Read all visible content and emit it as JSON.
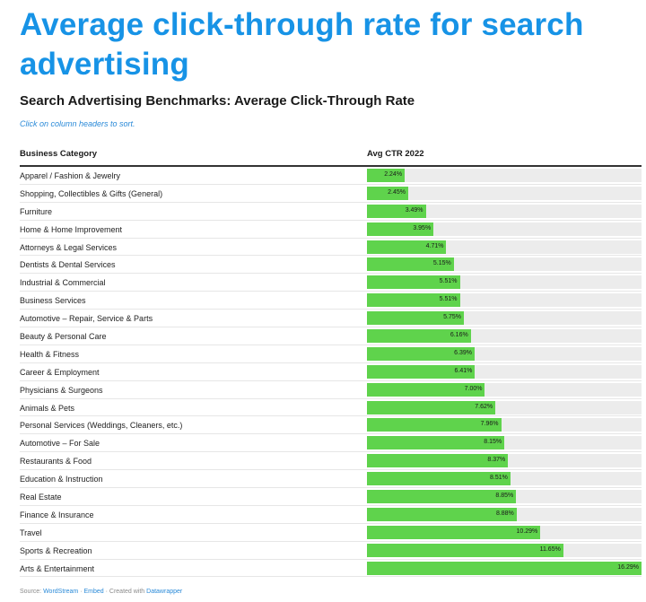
{
  "headline": "Average click-through rate for search advertising",
  "subtitle": "Search Advertising Benchmarks: Average Click-Through Rate",
  "hint": "Click on column headers to sort.",
  "columns": {
    "category": "Business Category",
    "ctr": "Avg CTR 2022"
  },
  "footer": {
    "source_label": "Source:",
    "source_link": "WordStream",
    "sep1": " · ",
    "embed": "Embed",
    "created": " · Created with ",
    "tool": "Datawrapper"
  },
  "colors": {
    "headline": "#1793e6",
    "bar": "#5fd34c",
    "track": "#ececec"
  },
  "chart_data": {
    "type": "bar",
    "orientation": "horizontal",
    "title": "Search Advertising Benchmarks: Average Click-Through Rate",
    "xlim": [
      0,
      16.29
    ],
    "rows": [
      {
        "category": "Apparel / Fashion & Jewelry",
        "value": 2.24,
        "label": "2.24%"
      },
      {
        "category": "Shopping, Collectibles & Gifts (General)",
        "value": 2.45,
        "label": "2.45%"
      },
      {
        "category": "Furniture",
        "value": 3.49,
        "label": "3.49%"
      },
      {
        "category": "Home & Home Improvement",
        "value": 3.95,
        "label": "3.95%"
      },
      {
        "category": "Attorneys & Legal Services",
        "value": 4.71,
        "label": "4.71%"
      },
      {
        "category": "Dentists & Dental Services",
        "value": 5.15,
        "label": "5.15%"
      },
      {
        "category": "Industrial & Commercial",
        "value": 5.51,
        "label": "5.51%"
      },
      {
        "category": "Business Services",
        "value": 5.51,
        "label": "5.51%"
      },
      {
        "category": "Automotive – Repair, Service & Parts",
        "value": 5.75,
        "label": "5.75%"
      },
      {
        "category": "Beauty & Personal Care",
        "value": 6.16,
        "label": "6.16%"
      },
      {
        "category": "Health & Fitness",
        "value": 6.39,
        "label": "6.39%"
      },
      {
        "category": "Career & Employment",
        "value": 6.41,
        "label": "6.41%"
      },
      {
        "category": "Physicians & Surgeons",
        "value": 7.0,
        "label": "7.00%"
      },
      {
        "category": "Animals & Pets",
        "value": 7.62,
        "label": "7.62%"
      },
      {
        "category": "Personal Services (Weddings, Cleaners, etc.)",
        "value": 7.96,
        "label": "7.96%"
      },
      {
        "category": "Automotive – For Sale",
        "value": 8.15,
        "label": "8.15%"
      },
      {
        "category": "Restaurants & Food",
        "value": 8.37,
        "label": "8.37%"
      },
      {
        "category": "Education & Instruction",
        "value": 8.51,
        "label": "8.51%"
      },
      {
        "category": "Real Estate",
        "value": 8.85,
        "label": "8.85%"
      },
      {
        "category": "Finance & Insurance",
        "value": 8.88,
        "label": "8.88%"
      },
      {
        "category": "Travel",
        "value": 10.29,
        "label": "10.29%"
      },
      {
        "category": "Sports & Recreation",
        "value": 11.65,
        "label": "11.65%"
      },
      {
        "category": "Arts & Entertainment",
        "value": 16.29,
        "label": "16.29%"
      }
    ]
  }
}
